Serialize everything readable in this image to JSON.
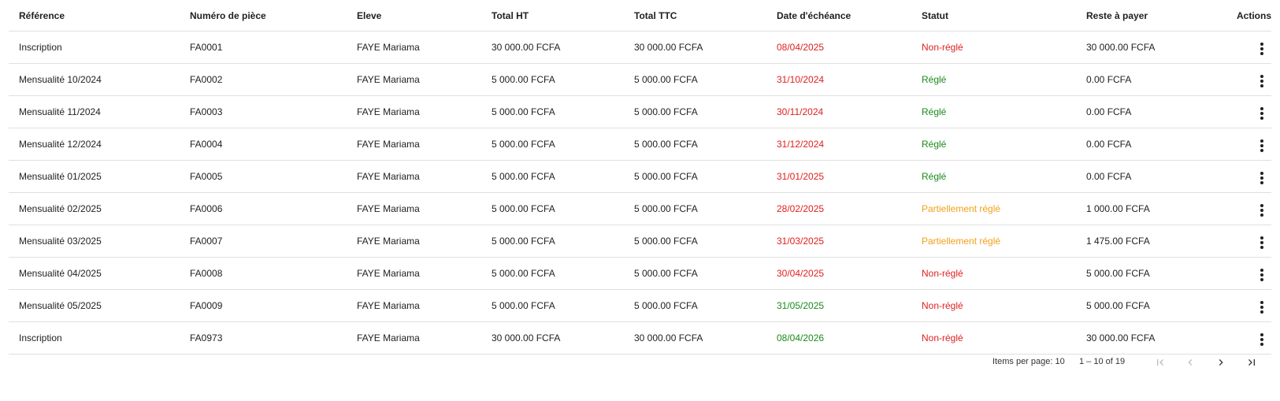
{
  "table": {
    "headers": [
      "Référence",
      "Numéro de pièce",
      "Eleve",
      "Total HT",
      "Total TTC",
      "Date d'échéance",
      "Statut",
      "Reste à payer",
      "Actions"
    ],
    "rows": [
      {
        "reference": "Inscription",
        "numero": "FA0001",
        "eleve": "FAYE Mariama",
        "total_ht": "30 000.00 FCFA",
        "total_ttc": "30 000.00 FCFA",
        "echeance": "08/04/2025",
        "echeance_color": "red",
        "statut": "Non-réglé",
        "statut_color": "red",
        "reste": "30 000.00 FCFA"
      },
      {
        "reference": "Mensualité 10/2024",
        "numero": "FA0002",
        "eleve": "FAYE Mariama",
        "total_ht": "5 000.00 FCFA",
        "total_ttc": "5 000.00 FCFA",
        "echeance": "31/10/2024",
        "echeance_color": "red",
        "statut": "Réglé",
        "statut_color": "green",
        "reste": "0.00 FCFA"
      },
      {
        "reference": "Mensualité 11/2024",
        "numero": "FA0003",
        "eleve": "FAYE Mariama",
        "total_ht": "5 000.00 FCFA",
        "total_ttc": "5 000.00 FCFA",
        "echeance": "30/11/2024",
        "echeance_color": "red",
        "statut": "Réglé",
        "statut_color": "green",
        "reste": "0.00 FCFA"
      },
      {
        "reference": "Mensualité 12/2024",
        "numero": "FA0004",
        "eleve": "FAYE Mariama",
        "total_ht": "5 000.00 FCFA",
        "total_ttc": "5 000.00 FCFA",
        "echeance": "31/12/2024",
        "echeance_color": "red",
        "statut": "Réglé",
        "statut_color": "green",
        "reste": "0.00 FCFA"
      },
      {
        "reference": "Mensualité 01/2025",
        "numero": "FA0005",
        "eleve": "FAYE Mariama",
        "total_ht": "5 000.00 FCFA",
        "total_ttc": "5 000.00 FCFA",
        "echeance": "31/01/2025",
        "echeance_color": "red",
        "statut": "Réglé",
        "statut_color": "green",
        "reste": "0.00 FCFA"
      },
      {
        "reference": "Mensualité 02/2025",
        "numero": "FA0006",
        "eleve": "FAYE Mariama",
        "total_ht": "5 000.00 FCFA",
        "total_ttc": "5 000.00 FCFA",
        "echeance": "28/02/2025",
        "echeance_color": "red",
        "statut": "Partiellement réglé",
        "statut_color": "orange",
        "reste": "1 000.00 FCFA"
      },
      {
        "reference": "Mensualité 03/2025",
        "numero": "FA0007",
        "eleve": "FAYE Mariama",
        "total_ht": "5 000.00 FCFA",
        "total_ttc": "5 000.00 FCFA",
        "echeance": "31/03/2025",
        "echeance_color": "red",
        "statut": "Partiellement réglé",
        "statut_color": "orange",
        "reste": "1 475.00 FCFA"
      },
      {
        "reference": "Mensualité 04/2025",
        "numero": "FA0008",
        "eleve": "FAYE Mariama",
        "total_ht": "5 000.00 FCFA",
        "total_ttc": "5 000.00 FCFA",
        "echeance": "30/04/2025",
        "echeance_color": "red",
        "statut": "Non-réglé",
        "statut_color": "red",
        "reste": "5 000.00 FCFA"
      },
      {
        "reference": "Mensualité 05/2025",
        "numero": "FA0009",
        "eleve": "FAYE Mariama",
        "total_ht": "5 000.00 FCFA",
        "total_ttc": "5 000.00 FCFA",
        "echeance": "31/05/2025",
        "echeance_color": "green",
        "statut": "Non-réglé",
        "statut_color": "red",
        "reste": "5 000.00 FCFA"
      },
      {
        "reference": "Inscription",
        "numero": "FA0973",
        "eleve": "FAYE Mariama",
        "total_ht": "30 000.00 FCFA",
        "total_ttc": "30 000.00 FCFA",
        "echeance": "08/04/2026",
        "echeance_color": "green",
        "statut": "Non-réglé",
        "statut_color": "red",
        "reste": "30 000.00 FCFA"
      }
    ],
    "row_action_icon": "more-vert-icon"
  },
  "paginator": {
    "items_per_page_label": "Items per page:",
    "items_per_page_value": "10",
    "range_label": "1 – 10 of 19",
    "first_icon": "first-page-icon",
    "prev_icon": "chevron-left-icon",
    "next_icon": "chevron-right-icon",
    "last_icon": "last-page-icon"
  },
  "colors": {
    "red": "#e02020",
    "green": "#1a8a1a",
    "orange": "#f2a01a",
    "border": "#e0e0e0",
    "disabled": "#bdbdbd"
  }
}
